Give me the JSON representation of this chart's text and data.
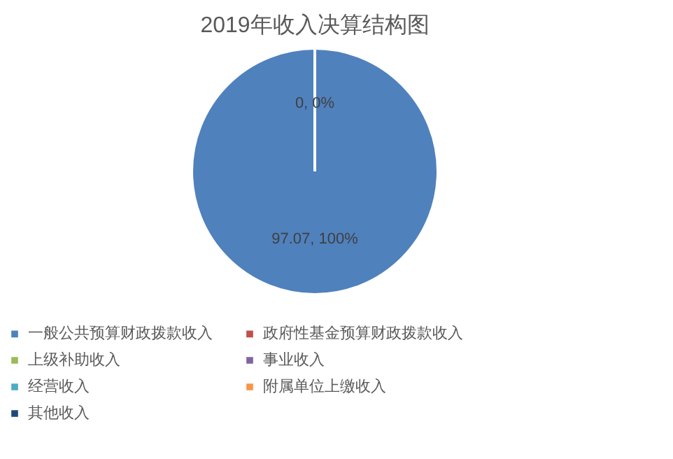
{
  "chart_data": {
    "type": "pie",
    "title": "2019年收入决算结构图",
    "categories": [
      "一般公共预算财政拨款收入",
      "政府性基金预算财政拨款收入",
      "上级补助收入",
      "事业收入",
      "经营收入",
      "附属单位上缴收入",
      "其他收入"
    ],
    "values": [
      97.07,
      0,
      0,
      0,
      0,
      0,
      0
    ],
    "colors": [
      "#4f81bd",
      "#c0504d",
      "#9bbb59",
      "#8064a2",
      "#4bacc6",
      "#f79646",
      "#1f497d"
    ],
    "value_labels": [
      "97.07, 100%",
      "0, 0%",
      null,
      null,
      null,
      null,
      null
    ],
    "legend": "bottom"
  }
}
